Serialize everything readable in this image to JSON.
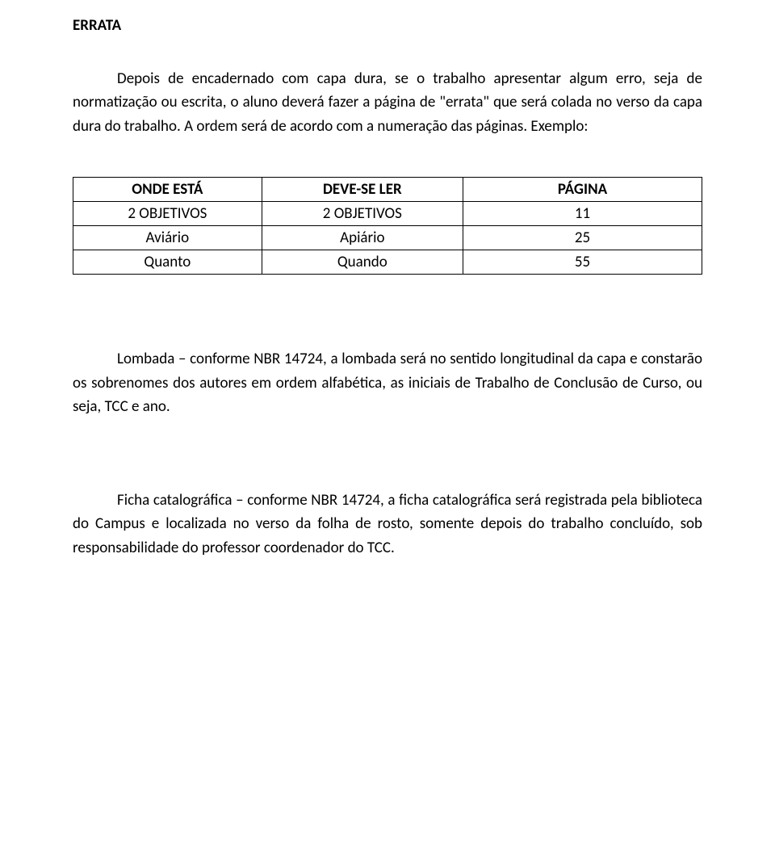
{
  "title": "ERRATA",
  "paragraph1": "Depois de encadernado com capa dura, se o trabalho apresentar algum erro, seja de normatização ou escrita, o aluno deverá fazer a página de \"errata\" que será colada no verso da capa dura do trabalho. A ordem será de acordo com a numeração das páginas. Exemplo:",
  "table": {
    "headers": [
      "ONDE ESTÁ",
      "DEVE-SE LER",
      "PÁGINA"
    ],
    "rows": [
      [
        "2 OBJETIVOS",
        "2 OBJETIVOS",
        "11"
      ],
      [
        "Aviário",
        "Apiário",
        "25"
      ],
      [
        "Quanto",
        "Quando",
        "55"
      ]
    ]
  },
  "paragraph2": "Lombada – conforme NBR 14724, a lombada será no sentido longitudinal da capa e constarão os sobrenomes dos autores em ordem alfabética, as iniciais de Trabalho de Conclusão de Curso, ou seja, TCC e ano.",
  "paragraph3": "Ficha catalográfica – conforme NBR 14724, a ficha catalográfica será registrada pela biblioteca do Campus e localizada no verso da folha de rosto, somente depois do trabalho concluído, sob responsabilidade do professor coordenador do TCC."
}
